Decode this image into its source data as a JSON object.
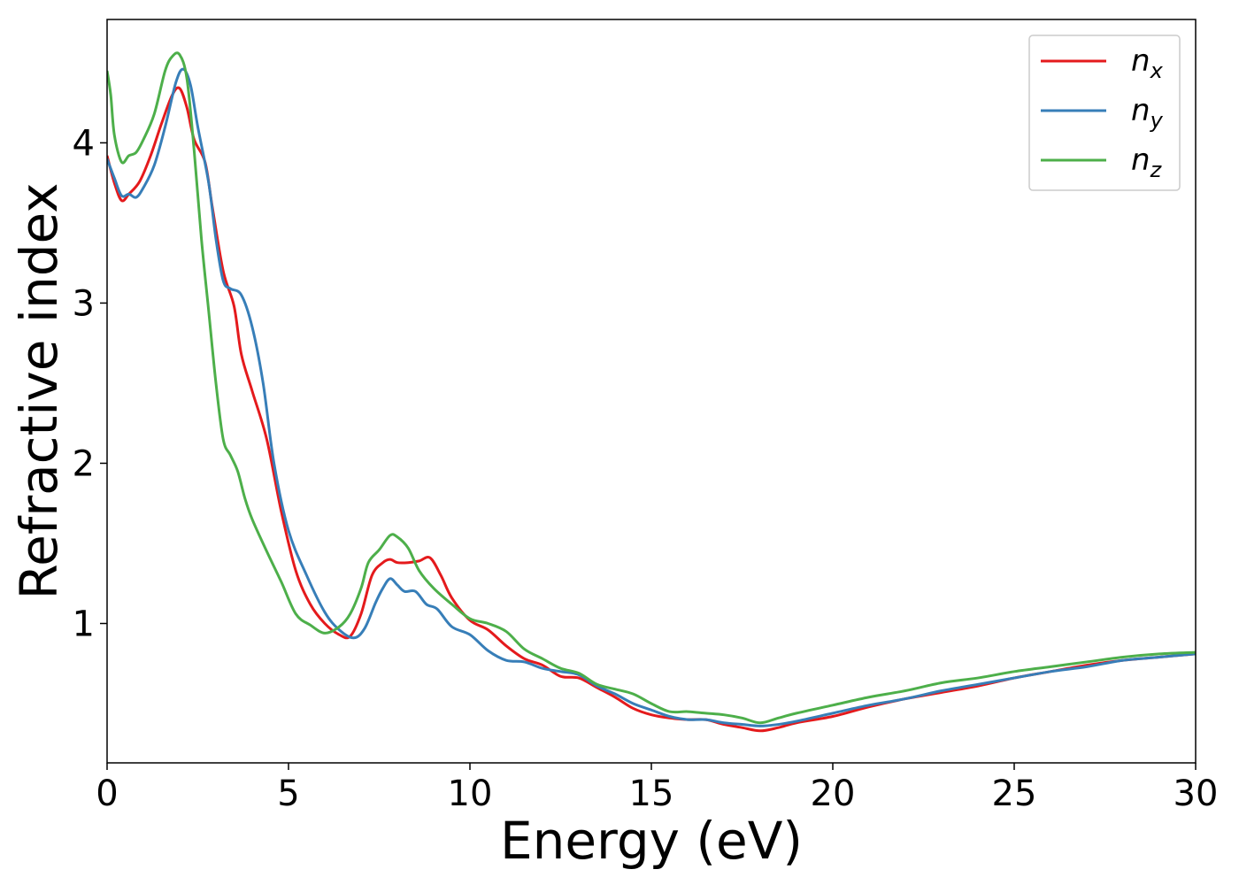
{
  "chart_data": {
    "type": "line",
    "xlabel": "Energy (eV)",
    "ylabel": "Refractive index",
    "xlim": [
      0,
      30
    ],
    "ylim": [
      0.13,
      4.77
    ],
    "xticks": [
      0,
      5,
      10,
      15,
      20,
      25,
      30
    ],
    "yticks": [
      1,
      2,
      3,
      4
    ],
    "grid": false,
    "legend_position": "top-right",
    "series": [
      {
        "name": "n_x",
        "legend_base": "n",
        "legend_sub": "x",
        "color": "#e41a1c",
        "x": [
          0,
          0.2,
          0.4,
          0.6,
          0.9,
          1.2,
          1.5,
          1.8,
          2.0,
          2.2,
          2.4,
          2.7,
          2.9,
          3.2,
          3.5,
          3.7,
          4.0,
          4.4,
          4.8,
          5.2,
          5.6,
          6.0,
          6.4,
          6.7,
          7.0,
          7.3,
          7.6,
          7.8,
          8.0,
          8.3,
          8.6,
          8.9,
          9.2,
          9.5,
          10.0,
          10.5,
          11.0,
          11.5,
          12.0,
          12.5,
          13.0,
          13.5,
          14.0,
          14.5,
          15.0,
          15.5,
          16.0,
          16.5,
          17.0,
          17.5,
          18.0,
          18.5,
          19.0,
          20.0,
          21.0,
          22.0,
          23.0,
          24.0,
          25.0,
          26.0,
          27.0,
          28.0,
          29.0,
          30.0
        ],
        "values": [
          3.92,
          3.75,
          3.64,
          3.68,
          3.76,
          3.92,
          4.12,
          4.3,
          4.34,
          4.22,
          4.02,
          3.88,
          3.6,
          3.2,
          2.98,
          2.68,
          2.45,
          2.15,
          1.7,
          1.33,
          1.12,
          1.0,
          0.93,
          0.92,
          1.06,
          1.3,
          1.38,
          1.4,
          1.38,
          1.38,
          1.39,
          1.41,
          1.3,
          1.16,
          1.02,
          0.96,
          0.86,
          0.78,
          0.74,
          0.67,
          0.66,
          0.6,
          0.54,
          0.47,
          0.43,
          0.41,
          0.4,
          0.4,
          0.37,
          0.35,
          0.33,
          0.35,
          0.38,
          0.42,
          0.48,
          0.53,
          0.57,
          0.61,
          0.66,
          0.7,
          0.74,
          0.77,
          0.79,
          0.81
        ]
      },
      {
        "name": "n_y",
        "legend_base": "n",
        "legend_sub": "y",
        "color": "#377eb8",
        "x": [
          0,
          0.2,
          0.4,
          0.6,
          0.8,
          1.0,
          1.3,
          1.6,
          1.9,
          2.1,
          2.3,
          2.5,
          2.8,
          3.0,
          3.2,
          3.4,
          3.7,
          4.0,
          4.3,
          4.6,
          5.0,
          5.5,
          6.0,
          6.4,
          6.8,
          7.1,
          7.4,
          7.6,
          7.8,
          8.0,
          8.2,
          8.5,
          8.8,
          9.1,
          9.5,
          10.0,
          10.5,
          11.0,
          11.5,
          12.0,
          12.5,
          13.0,
          13.5,
          14.0,
          14.5,
          15.0,
          15.5,
          16.0,
          16.5,
          17.0,
          17.5,
          18.0,
          18.5,
          19.0,
          20.0,
          21.0,
          22.0,
          23.0,
          24.0,
          25.0,
          26.0,
          27.0,
          28.0,
          29.0,
          30.0
        ],
        "values": [
          3.9,
          3.78,
          3.67,
          3.68,
          3.66,
          3.72,
          3.86,
          4.1,
          4.38,
          4.46,
          4.36,
          4.1,
          3.75,
          3.4,
          3.14,
          3.09,
          3.05,
          2.85,
          2.5,
          2.0,
          1.58,
          1.3,
          1.07,
          0.96,
          0.91,
          0.97,
          1.13,
          1.22,
          1.28,
          1.24,
          1.2,
          1.2,
          1.12,
          1.09,
          0.98,
          0.93,
          0.83,
          0.77,
          0.76,
          0.72,
          0.7,
          0.68,
          0.61,
          0.56,
          0.5,
          0.46,
          0.42,
          0.4,
          0.4,
          0.38,
          0.37,
          0.36,
          0.37,
          0.39,
          0.44,
          0.49,
          0.53,
          0.58,
          0.62,
          0.66,
          0.7,
          0.73,
          0.77,
          0.79,
          0.81
        ]
      },
      {
        "name": "n_z",
        "legend_base": "n",
        "legend_sub": "z",
        "color": "#4daf4a",
        "x": [
          0,
          0.1,
          0.2,
          0.4,
          0.6,
          0.8,
          1.0,
          1.3,
          1.6,
          1.8,
          2.0,
          2.2,
          2.4,
          2.6,
          2.8,
          3.0,
          3.2,
          3.4,
          3.6,
          3.8,
          4.0,
          4.4,
          4.8,
          5.2,
          5.6,
          6.0,
          6.4,
          6.7,
          7.0,
          7.2,
          7.5,
          7.8,
          8.0,
          8.3,
          8.6,
          9.0,
          9.5,
          10.0,
          10.5,
          11.0,
          11.5,
          12.0,
          12.5,
          13.0,
          13.5,
          14.0,
          14.5,
          15.0,
          15.5,
          16.0,
          16.5,
          17.0,
          17.5,
          18.0,
          18.5,
          19.0,
          20.0,
          21.0,
          22.0,
          23.0,
          24.0,
          25.0,
          26.0,
          27.0,
          28.0,
          29.0,
          30.0
        ],
        "values": [
          4.45,
          4.3,
          4.05,
          3.88,
          3.92,
          3.94,
          4.02,
          4.18,
          4.45,
          4.54,
          4.55,
          4.4,
          3.95,
          3.4,
          2.95,
          2.5,
          2.15,
          2.05,
          1.95,
          1.78,
          1.65,
          1.45,
          1.26,
          1.06,
          0.99,
          0.94,
          0.98,
          1.06,
          1.22,
          1.38,
          1.46,
          1.55,
          1.54,
          1.47,
          1.33,
          1.22,
          1.12,
          1.03,
          1.0,
          0.95,
          0.84,
          0.78,
          0.72,
          0.69,
          0.62,
          0.59,
          0.56,
          0.5,
          0.45,
          0.45,
          0.44,
          0.43,
          0.41,
          0.38,
          0.41,
          0.44,
          0.49,
          0.54,
          0.58,
          0.63,
          0.66,
          0.7,
          0.73,
          0.76,
          0.79,
          0.81,
          0.82
        ]
      }
    ]
  }
}
